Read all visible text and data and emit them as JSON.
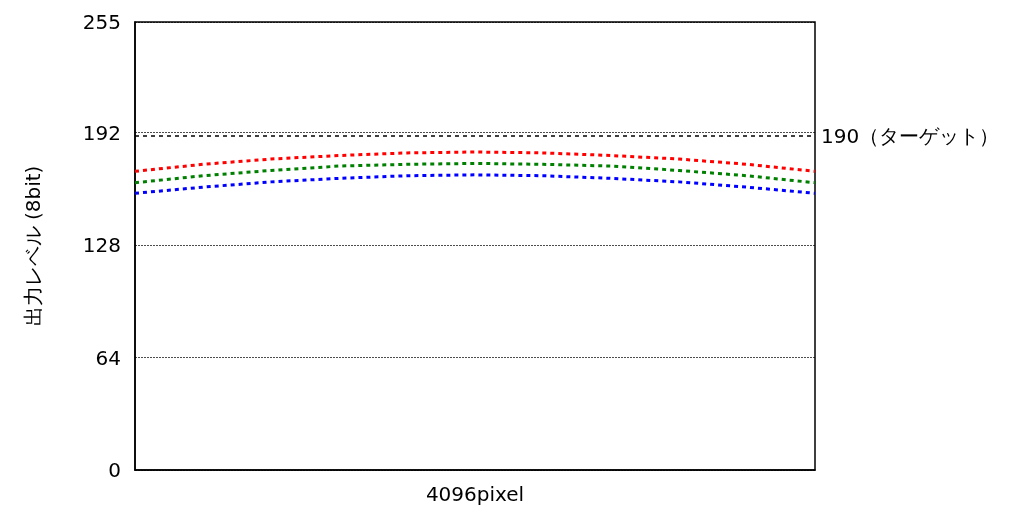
{
  "chart_data": {
    "type": "line",
    "xlabel": "4096pixel",
    "ylabel": "出力レベル (8bit)",
    "categories": [
      null,
      null,
      null,
      null,
      null,
      null,
      null,
      null,
      null,
      null,
      null
    ],
    "series": [
      {
        "color": "#ff0000",
        "values": [
          170,
          174,
          177,
          179,
          180.5,
          181,
          180.5,
          179,
          177,
          174,
          170
        ]
      },
      {
        "color": "#008000",
        "values": [
          163.5,
          167.5,
          170.5,
          173,
          174,
          174.5,
          174,
          173,
          170.5,
          167.5,
          163.5
        ]
      },
      {
        "color": "#0000ff",
        "values": [
          157.5,
          161,
          164,
          166,
          167.5,
          168,
          167.5,
          166,
          164,
          161,
          157.5
        ]
      }
    ],
    "ylim": [
      0,
      255
    ],
    "yticks": [
      0,
      64,
      128,
      192,
      255
    ],
    "grid": "y",
    "marker": "none",
    "line_style": "dashed",
    "ref_lines": [
      {
        "axis": "y",
        "value": 190,
        "label": "190（ターゲット）",
        "color": "#000000",
        "line_style": "dashed"
      }
    ]
  }
}
